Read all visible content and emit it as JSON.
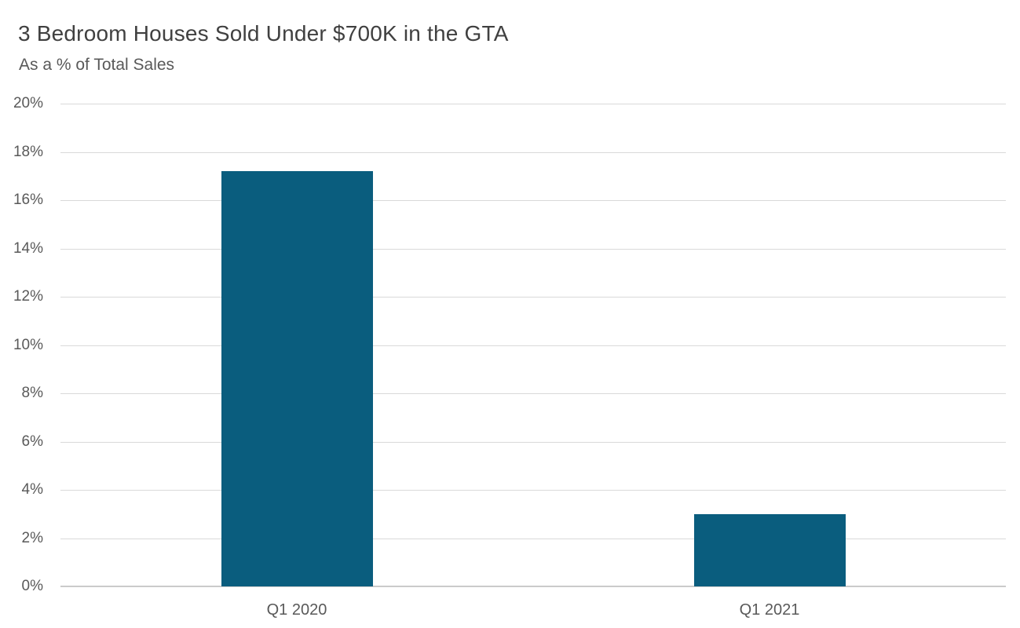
{
  "header": {
    "title": "3 Bedroom Houses Sold Under $700K in the GTA",
    "subtitle": "As a % of Total Sales"
  },
  "chart_data": {
    "type": "bar",
    "title": "3 Bedroom Houses Sold Under $700K in the GTA",
    "subtitle": "As a % of Total Sales",
    "categories": [
      "Q1 2020",
      "Q1 2021"
    ],
    "values": [
      17.2,
      3.0
    ],
    "xlabel": "",
    "ylabel": "",
    "ylim": [
      0,
      20
    ],
    "ytick_step": 2,
    "ytick_suffix": "%",
    "ytick_labels": [
      "0%",
      "2%",
      "4%",
      "6%",
      "8%",
      "10%",
      "12%",
      "14%",
      "16%",
      "18%",
      "20%"
    ],
    "grid": true,
    "legend": "none",
    "colors": {
      "bar": "#0A5D7E",
      "gridline": "#D9D9D9",
      "axisline": "#CBCBCB",
      "title_text": "#404040",
      "label_text": "#595959",
      "background": "#FFFFFF"
    }
  }
}
